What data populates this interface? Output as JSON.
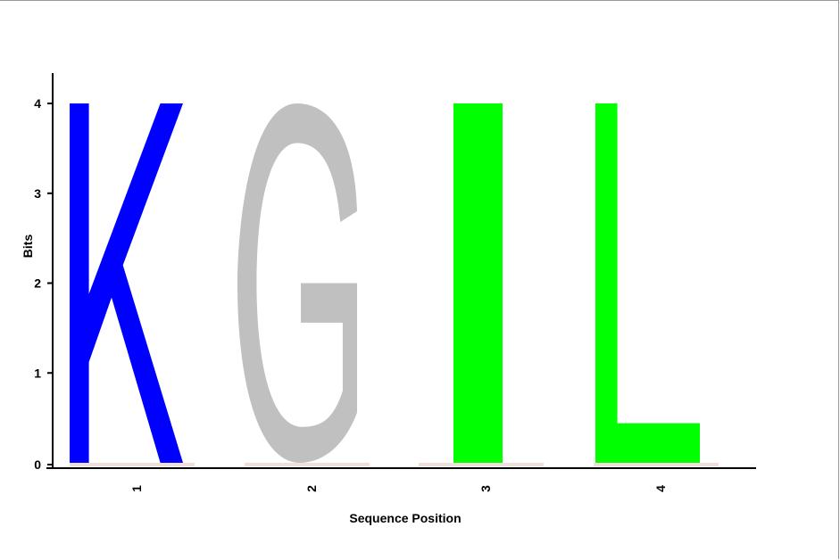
{
  "chart_data": {
    "type": "sequence-logo",
    "xlabel": "Sequence Position",
    "ylabel": "Bits",
    "ylim": [
      0,
      4
    ],
    "yticks": [
      "0",
      "1",
      "2",
      "3",
      "4"
    ],
    "positions": [
      {
        "label": "1",
        "letter": "K",
        "bits": 4.0,
        "color": "#0000ff"
      },
      {
        "label": "2",
        "letter": "G",
        "bits": 4.0,
        "color": "#c0c0c0"
      },
      {
        "label": "3",
        "letter": "I",
        "bits": 4.0,
        "color": "#00ff00"
      },
      {
        "label": "4",
        "letter": "L",
        "bits": 4.0,
        "color": "#00ff00"
      }
    ]
  }
}
